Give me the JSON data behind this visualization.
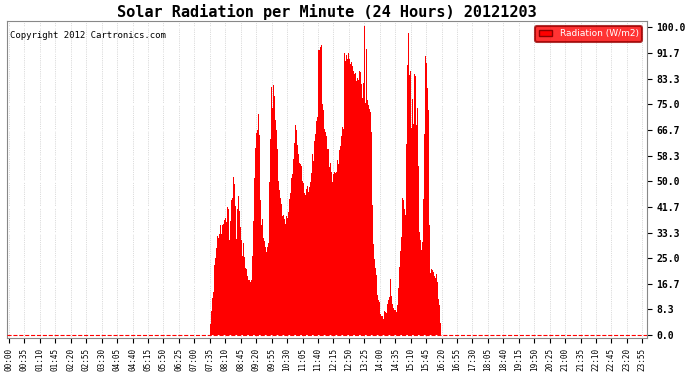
{
  "title": "Solar Radiation per Minute (24 Hours) 20121203",
  "copyright": "Copyright 2012 Cartronics.com",
  "legend_label": "Radiation (W/m2)",
  "bar_color": "#ff0000",
  "dashed_line_color": "#ff0000",
  "grid_color": "#bbbbbb",
  "background_color": "#ffffff",
  "plot_bg_color": "#ffffff",
  "ylim": [
    0.0,
    100.0
  ],
  "yticks": [
    0.0,
    8.3,
    16.7,
    25.0,
    33.3,
    41.7,
    50.0,
    58.3,
    66.7,
    75.0,
    83.3,
    91.7,
    100.0
  ],
  "title_fontsize": 11,
  "copyright_fontsize": 6.5,
  "total_minutes": 1440,
  "sunrise_minute": 455,
  "sunset_minute": 980,
  "solar_noon": 717,
  "peak_value": 102.0,
  "xtick_step": 35
}
